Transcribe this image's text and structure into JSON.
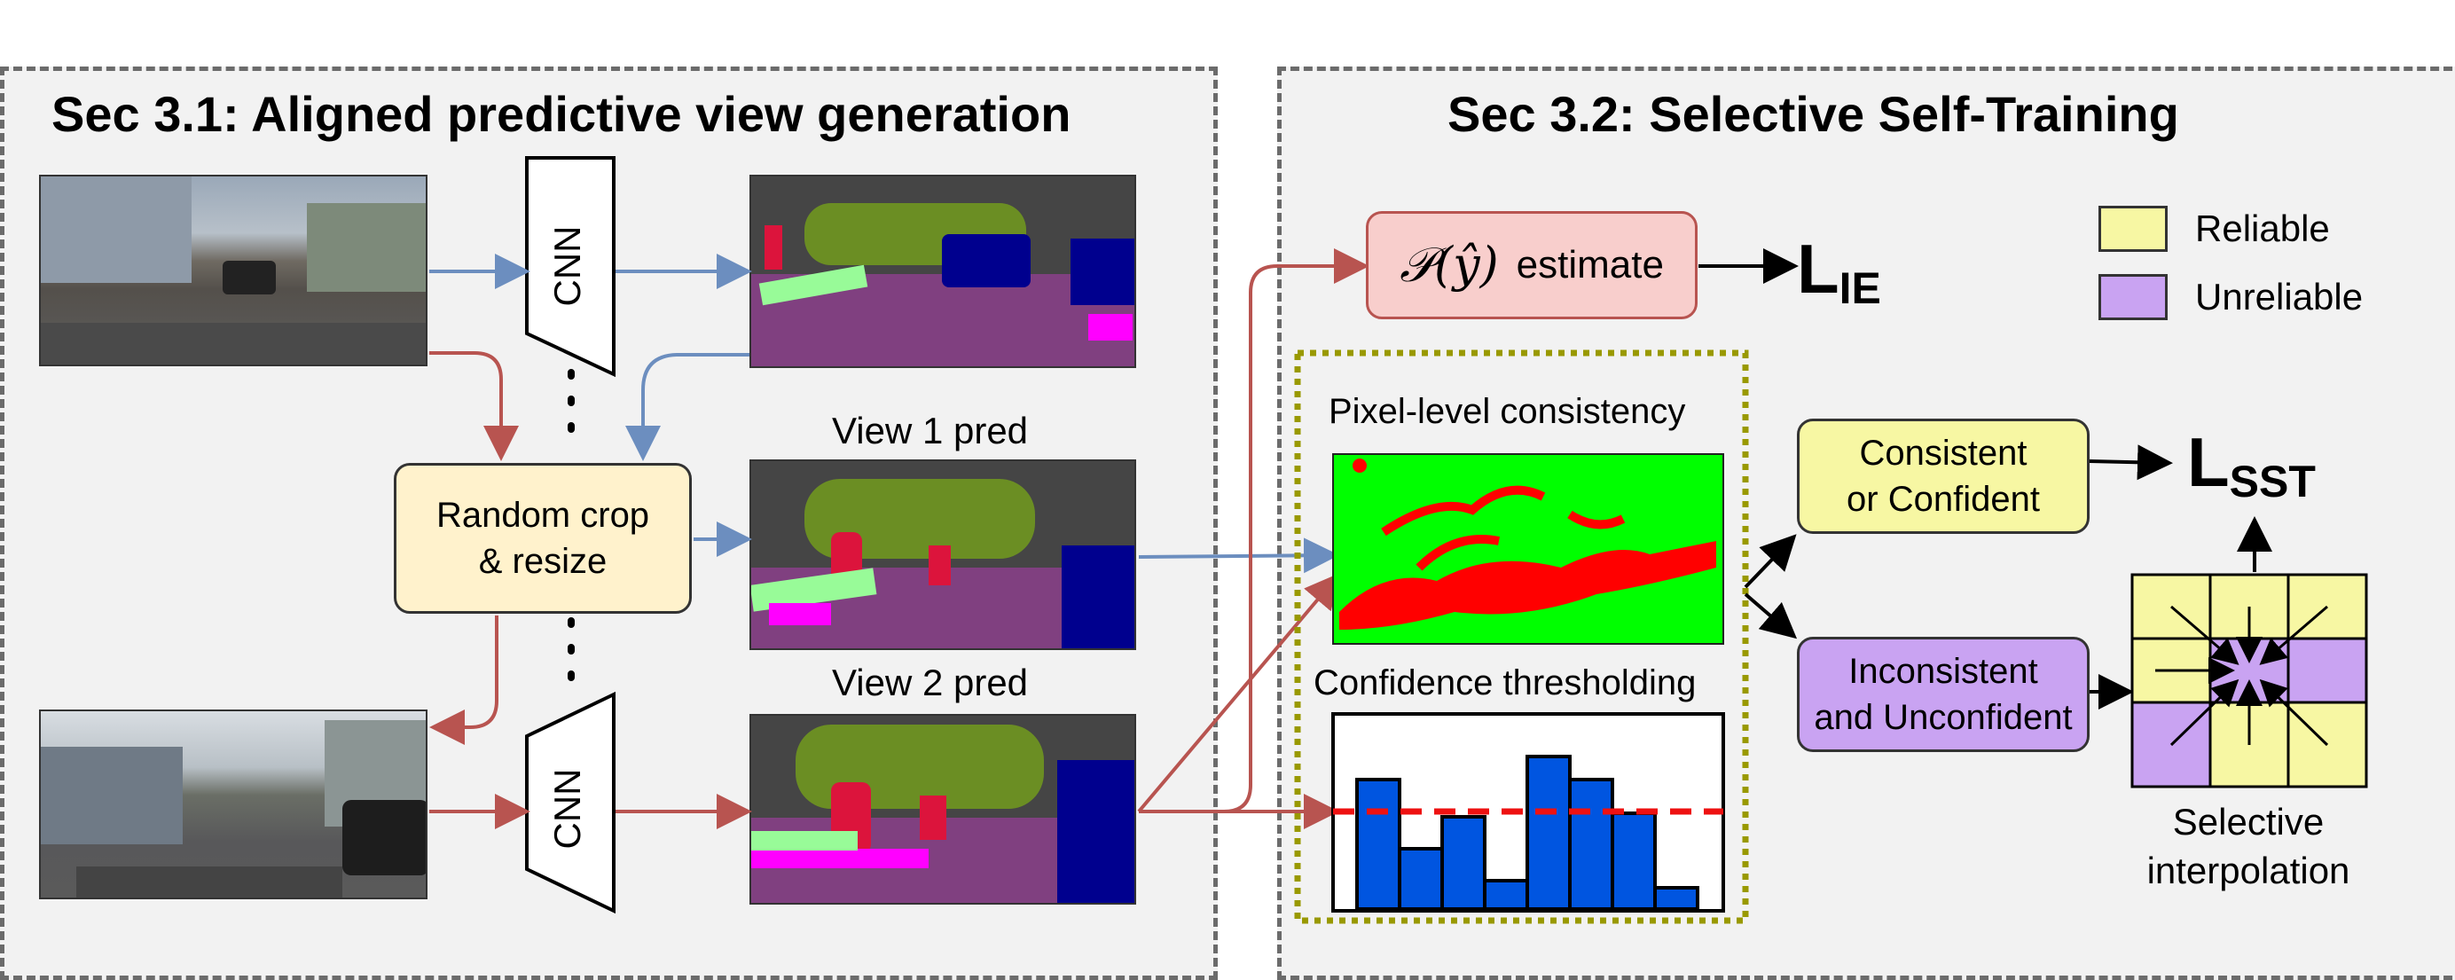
{
  "sec31": {
    "title": "Sec 3.1: Aligned predictive view generation"
  },
  "sec32": {
    "title": "Sec 3.2: Selective Self-Training"
  },
  "cnn": {
    "top_label": "CNN",
    "bottom_label": "CNN"
  },
  "crop_box": {
    "line1": "Random crop",
    "line2": "& resize"
  },
  "views": {
    "view1": "View 1 pred",
    "view2": "View 2 pred"
  },
  "estimate_box": {
    "math": "𝒫(ŷ)",
    "text": "estimate"
  },
  "losses": {
    "ie_main": "L",
    "ie_sub": "IE",
    "sst_main": "L",
    "sst_sub": "SST"
  },
  "consistency": {
    "label": "Pixel-level consistency"
  },
  "confidence": {
    "label": "Confidence thresholding",
    "bars": [
      0.73,
      0.34,
      0.52,
      0.16,
      0.86,
      0.73,
      0.54,
      0.12
    ],
    "threshold": 0.55
  },
  "legend": {
    "reliable": "Reliable",
    "unreliable": "Unreliable"
  },
  "colors": {
    "reliable": "#f7f7a3",
    "unreliable": "#c9a3f2",
    "red_arrow": "#b85450",
    "blue_arrow": "#6c8ebf"
  },
  "consistent_box": {
    "line1": "Consistent",
    "line2": "or Confident"
  },
  "inconsistent_box": {
    "line1": "Inconsistent",
    "line2": "and Unconfident"
  },
  "interp": {
    "line1": "Selective",
    "line2": "interpolation"
  }
}
